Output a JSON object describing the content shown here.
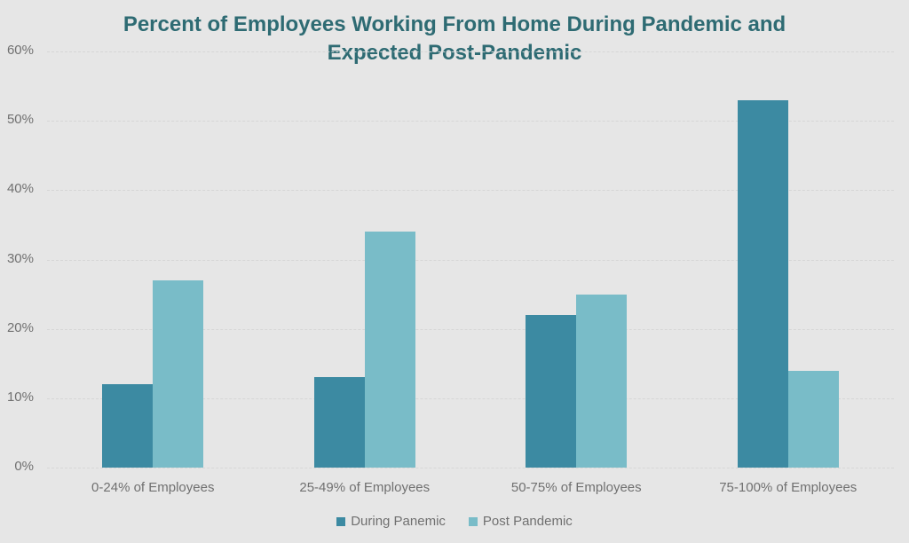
{
  "chart_data": {
    "type": "bar",
    "title": "Percent of Employees Working From Home During Pandemic and Expected Post-Pandemic",
    "title_lines": [
      "Percent of Employees Working From Home During Pandemic and",
      "Expected Post-Pandemic"
    ],
    "xlabel": "",
    "ylabel": "",
    "categories": [
      "0-24% of Employees",
      "25-49% of Employees",
      "50-75% of Employees",
      "75-100% of Employees"
    ],
    "series": [
      {
        "name": "During Panemic",
        "color": "#3c8aa2",
        "values": [
          12,
          13,
          22,
          53
        ]
      },
      {
        "name": "Post Pandemic",
        "color": "#79bcc8",
        "values": [
          27,
          34,
          25,
          14
        ]
      }
    ],
    "ylim": [
      0,
      60
    ],
    "yticks": [
      "0%",
      "10%",
      "20%",
      "30%",
      "40%",
      "50%",
      "60%"
    ],
    "grid": true,
    "legend_position": "bottom"
  }
}
